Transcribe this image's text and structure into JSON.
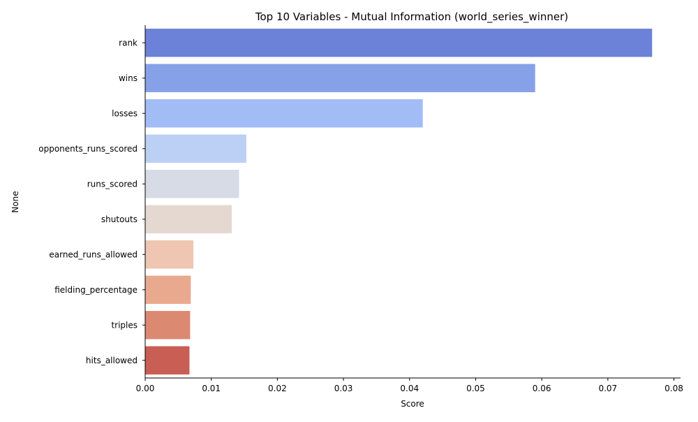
{
  "chart_data": {
    "type": "bar",
    "orientation": "horizontal",
    "title": "Top 10 Variables - Mutual Information (world_series_winner)",
    "xlabel": "Score",
    "ylabel": "None",
    "xlim": [
      0,
      0.081
    ],
    "x_ticks": [
      "0.00",
      "0.01",
      "0.02",
      "0.03",
      "0.04",
      "0.05",
      "0.06",
      "0.07",
      "0.08"
    ],
    "grid": false,
    "categories": [
      "rank",
      "wins",
      "losses",
      "opponents_runs_scored",
      "runs_scored",
      "shutouts",
      "earned_runs_allowed",
      "fielding_percentage",
      "triples",
      "hits_allowed"
    ],
    "values": [
      0.0767,
      0.059,
      0.042,
      0.0153,
      0.0142,
      0.0131,
      0.0073,
      0.0069,
      0.0068,
      0.0067
    ],
    "colors": [
      "#6b82d8",
      "#86a1e8",
      "#a2bcf5",
      "#bccff4",
      "#d6dbe6",
      "#e4d8d1",
      "#eec6b1",
      "#e9a98f",
      "#dc8972",
      "#c95e55"
    ]
  }
}
